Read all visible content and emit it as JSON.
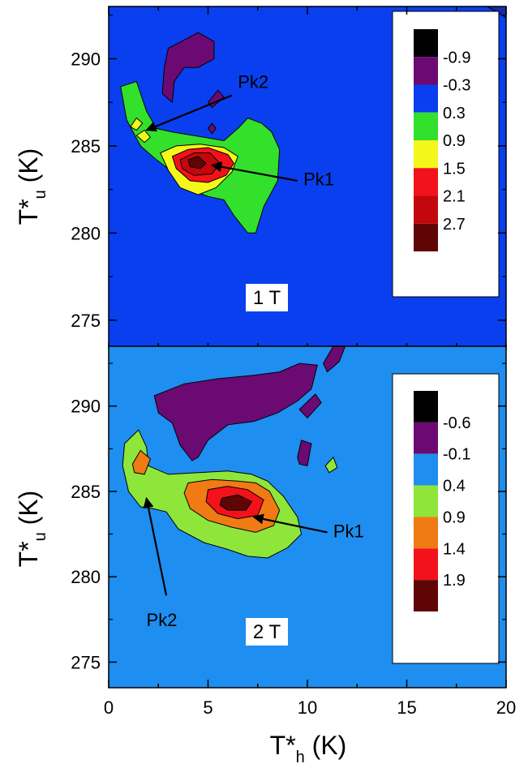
{
  "chart_data": [
    {
      "type": "contour",
      "panel": "top",
      "field_label": "1 T",
      "xlabel": "",
      "ylabel": "T*",
      "ylabel_sub": "u",
      "ylabel_unit": " (K)",
      "xlim": [
        0,
        20
      ],
      "ylim": [
        273.5,
        293
      ],
      "yticks": [
        275,
        280,
        285,
        290
      ],
      "yticks_labels": [
        "275",
        "280",
        "285",
        "290"
      ],
      "background_color": "#0a3ff0",
      "levels": [
        {
          "label": "-0.9",
          "color": "#000000"
        },
        {
          "label": "-0.3",
          "color": "#6b0a72"
        },
        {
          "label": "0.3",
          "color": "#0a3ff0"
        },
        {
          "label": "0.9",
          "color": "#33e02c"
        },
        {
          "label": "1.5",
          "color": "#f4f81a"
        },
        {
          "label": "2.1",
          "color": "#f2121b"
        },
        {
          "label": "2.7",
          "color": "#c4070d"
        },
        {
          "label": "",
          "color": "#5f0506"
        }
      ],
      "regions": [
        {
          "level": 1,
          "points": [
            [
              3.0,
              290.6
            ],
            [
              4.5,
              291.5
            ],
            [
              5.3,
              291.0
            ],
            [
              5.3,
              290.0
            ],
            [
              4.5,
              289.5
            ],
            [
              3.8,
              289.5
            ],
            [
              3.3,
              288.7
            ],
            [
              3.2,
              287.5
            ],
            [
              2.7,
              288.0
            ],
            [
              2.8,
              289.5
            ]
          ]
        },
        {
          "level": 1,
          "points": [
            [
              5.0,
              287.5
            ],
            [
              5.5,
              288.2
            ],
            [
              5.8,
              287.8
            ],
            [
              5.2,
              287.2
            ]
          ]
        },
        {
          "level": 1,
          "points": [
            [
              5.0,
              286.0
            ],
            [
              5.2,
              286.3
            ],
            [
              5.4,
              286.0
            ],
            [
              5.2,
              285.7
            ]
          ]
        },
        {
          "level": 3,
          "points": [
            [
              0.6,
              288.4
            ],
            [
              1.4,
              288.7
            ],
            [
              1.9,
              287.0
            ],
            [
              2.4,
              286.0
            ],
            [
              3.2,
              285.8
            ],
            [
              4.8,
              285.5
            ],
            [
              5.8,
              285.3
            ],
            [
              6.5,
              286.0
            ],
            [
              7.0,
              286.6
            ],
            [
              7.7,
              286.3
            ],
            [
              8.2,
              285.8
            ],
            [
              8.6,
              284.8
            ],
            [
              8.5,
              283.0
            ],
            [
              7.8,
              281.5
            ],
            [
              7.4,
              280.0
            ],
            [
              7.0,
              280.0
            ],
            [
              6.3,
              281.0
            ],
            [
              5.8,
              281.9
            ],
            [
              5.0,
              282.1
            ],
            [
              4.0,
              282.5
            ],
            [
              3.2,
              283.5
            ],
            [
              2.3,
              284.3
            ],
            [
              1.6,
              285.0
            ],
            [
              0.9,
              286.5
            ]
          ]
        },
        {
          "level": 4,
          "points": [
            [
              2.6,
              284.6
            ],
            [
              3.4,
              285.0
            ],
            [
              4.6,
              285.1
            ],
            [
              5.8,
              284.9
            ],
            [
              6.5,
              284.4
            ],
            [
              6.2,
              283.5
            ],
            [
              5.4,
              282.6
            ],
            [
              4.5,
              282.2
            ],
            [
              3.6,
              282.6
            ],
            [
              3.0,
              283.6
            ]
          ]
        },
        {
          "level": 4,
          "points": [
            [
              1.1,
              286.1
            ],
            [
              1.4,
              286.6
            ],
            [
              1.7,
              286.3
            ],
            [
              1.4,
              285.9
            ]
          ]
        },
        {
          "level": 4,
          "points": [
            [
              1.4,
              285.6
            ],
            [
              1.8,
              285.9
            ],
            [
              2.1,
              285.5
            ],
            [
              1.8,
              285.2
            ]
          ]
        },
        {
          "level": 5,
          "points": [
            [
              3.2,
              284.4
            ],
            [
              4.0,
              284.8
            ],
            [
              5.0,
              284.9
            ],
            [
              6.0,
              284.5
            ],
            [
              6.3,
              284.0
            ],
            [
              5.9,
              283.3
            ],
            [
              5.0,
              282.9
            ],
            [
              4.1,
              283.0
            ],
            [
              3.4,
              283.7
            ]
          ]
        },
        {
          "level": 6,
          "points": [
            [
              3.6,
              284.2
            ],
            [
              4.3,
              284.6
            ],
            [
              5.1,
              284.6
            ],
            [
              5.6,
              284.0
            ],
            [
              5.2,
              283.4
            ],
            [
              4.3,
              283.3
            ],
            [
              3.7,
              283.7
            ]
          ]
        },
        {
          "level": 7,
          "points": [
            [
              4.0,
              284.2
            ],
            [
              4.5,
              284.4
            ],
            [
              4.9,
              284.0
            ],
            [
              4.6,
              283.7
            ],
            [
              4.1,
              283.8
            ]
          ]
        }
      ],
      "annotations": [
        {
          "label": "Pk1",
          "arrow_tip": [
            5.2,
            283.9
          ],
          "arrow_from": [
            9.5,
            283.0
          ],
          "text_at": [
            9.8,
            283.1
          ]
        },
        {
          "label": "Pk2",
          "arrow_tip": [
            1.9,
            285.9
          ],
          "arrow_from": [
            6.2,
            287.9
          ],
          "text_at": [
            6.5,
            288.7
          ]
        }
      ]
    },
    {
      "type": "contour",
      "panel": "bottom",
      "field_label": "2 T",
      "xlabel": "T*",
      "xlabel_sub": "h",
      "xlabel_unit": " (K)",
      "ylabel": "T*",
      "ylabel_sub": "u",
      "ylabel_unit": " (K)",
      "xlim": [
        0,
        20
      ],
      "ylim": [
        273.5,
        293.5
      ],
      "xticks": [
        0,
        5,
        10,
        15,
        20
      ],
      "xticks_labels": [
        "0",
        "5",
        "10",
        "15",
        "20"
      ],
      "yticks": [
        275,
        280,
        285,
        290
      ],
      "yticks_labels": [
        "275",
        "280",
        "285",
        "290"
      ],
      "background_color": "#1e8ef0",
      "levels": [
        {
          "label": "-0.6",
          "color": "#000000"
        },
        {
          "label": "-0.1",
          "color": "#6b0a72"
        },
        {
          "label": "0.4",
          "color": "#1e8ef0"
        },
        {
          "label": "0.9",
          "color": "#8ee63a"
        },
        {
          "label": "1.4",
          "color": "#f07a14"
        },
        {
          "label": "1.9",
          "color": "#f2121b"
        },
        {
          "label": "",
          "color": "#5f0506"
        }
      ],
      "regions": [
        {
          "level": 1,
          "points": [
            [
              2.3,
              290.6
            ],
            [
              3.8,
              291.3
            ],
            [
              5.5,
              291.6
            ],
            [
              7.3,
              291.8
            ],
            [
              8.6,
              292.0
            ],
            [
              9.6,
              292.5
            ],
            [
              10.5,
              292.4
            ],
            [
              10.2,
              291.0
            ],
            [
              9.5,
              290.3
            ],
            [
              8.5,
              289.6
            ],
            [
              7.3,
              289.1
            ],
            [
              6.0,
              288.9
            ],
            [
              5.0,
              288.0
            ],
            [
              4.5,
              287.0
            ],
            [
              4.2,
              286.8
            ],
            [
              3.6,
              287.7
            ],
            [
              3.2,
              289.0
            ],
            [
              2.5,
              289.6
            ]
          ]
        },
        {
          "level": 1,
          "points": [
            [
              10.8,
              292.5
            ],
            [
              11.3,
              293.5
            ],
            [
              11.9,
              293.5
            ],
            [
              11.6,
              292.6
            ],
            [
              11.0,
              292.0
            ]
          ]
        },
        {
          "level": 1,
          "points": [
            [
              9.6,
              289.8
            ],
            [
              10.4,
              290.7
            ],
            [
              10.7,
              290.2
            ],
            [
              10.0,
              289.3
            ]
          ]
        },
        {
          "level": 1,
          "points": [
            [
              9.5,
              287.0
            ],
            [
              9.7,
              288.0
            ],
            [
              10.2,
              287.8
            ],
            [
              10.0,
              286.5
            ],
            [
              9.6,
              286.6
            ]
          ]
        },
        {
          "level": 3,
          "points": [
            [
              0.8,
              287.8
            ],
            [
              1.5,
              288.6
            ],
            [
              1.9,
              287.6
            ],
            [
              2.0,
              286.5
            ],
            [
              3.0,
              286.0
            ],
            [
              4.5,
              286.1
            ],
            [
              6.0,
              286.2
            ],
            [
              7.2,
              286.0
            ],
            [
              8.0,
              285.6
            ],
            [
              8.8,
              284.7
            ],
            [
              9.5,
              283.5
            ],
            [
              9.7,
              282.5
            ],
            [
              9.0,
              281.7
            ],
            [
              8.0,
              281.1
            ],
            [
              7.0,
              281.2
            ],
            [
              6.0,
              281.6
            ],
            [
              4.8,
              282.0
            ],
            [
              3.5,
              282.8
            ],
            [
              2.9,
              283.8
            ],
            [
              2.2,
              284.0
            ],
            [
              1.6,
              284.1
            ],
            [
              1.0,
              285.0
            ],
            [
              0.7,
              286.5
            ]
          ]
        },
        {
          "level": 3,
          "points": [
            [
              10.9,
              286.5
            ],
            [
              11.3,
              287.0
            ],
            [
              11.5,
              286.4
            ],
            [
              11.1,
              286.1
            ]
          ]
        },
        {
          "level": 4,
          "points": [
            [
              4.0,
              285.5
            ],
            [
              5.2,
              285.7
            ],
            [
              6.5,
              285.6
            ],
            [
              7.4,
              285.5
            ],
            [
              8.1,
              285.0
            ],
            [
              8.6,
              283.9
            ],
            [
              8.3,
              283.0
            ],
            [
              7.4,
              282.6
            ],
            [
              6.2,
              282.9
            ],
            [
              5.0,
              283.3
            ],
            [
              4.1,
              284.0
            ],
            [
              3.8,
              284.9
            ]
          ]
        },
        {
          "level": 4,
          "points": [
            [
              1.2,
              286.6
            ],
            [
              1.6,
              287.4
            ],
            [
              2.1,
              286.9
            ],
            [
              1.8,
              286.0
            ],
            [
              1.3,
              286.1
            ]
          ]
        },
        {
          "level": 5,
          "points": [
            [
              5.0,
              285.1
            ],
            [
              6.0,
              285.3
            ],
            [
              7.0,
              285.1
            ],
            [
              7.8,
              284.5
            ],
            [
              7.5,
              283.6
            ],
            [
              6.5,
              283.4
            ],
            [
              5.5,
              283.7
            ],
            [
              4.9,
              284.4
            ]
          ]
        },
        {
          "level": 6,
          "points": [
            [
              5.7,
              284.6
            ],
            [
              6.5,
              284.8
            ],
            [
              7.2,
              284.4
            ],
            [
              6.9,
              283.9
            ],
            [
              6.0,
              283.9
            ],
            [
              5.6,
              284.2
            ]
          ]
        }
      ],
      "annotations": [
        {
          "label": "Pk1",
          "arrow_tip": [
            7.3,
            283.5
          ],
          "arrow_from": [
            11.0,
            282.6
          ],
          "text_at": [
            11.3,
            282.7
          ]
        },
        {
          "label": "Pk2",
          "arrow_tip": [
            1.9,
            284.6
          ],
          "arrow_from": [
            2.9,
            278.9
          ],
          "text_at": [
            1.9,
            277.5
          ]
        }
      ]
    }
  ]
}
